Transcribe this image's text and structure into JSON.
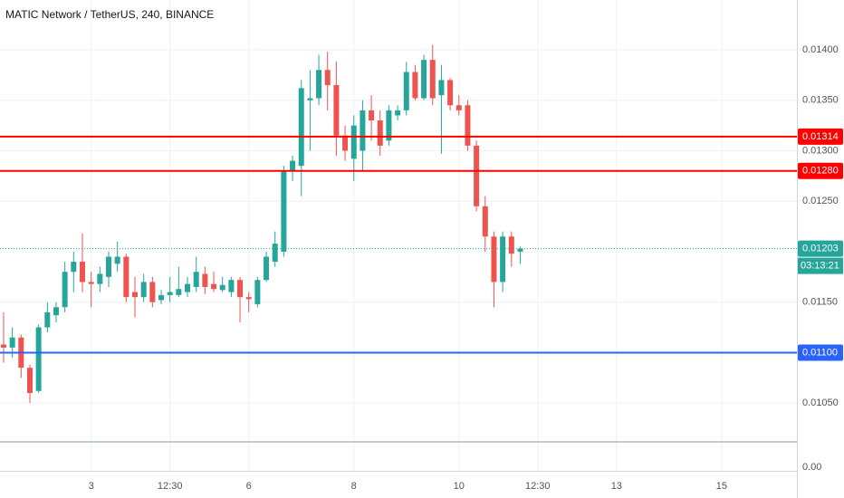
{
  "chart_data": {
    "type": "candlestick",
    "title": "MATIC Network / TetherUS, 240, BINANCE",
    "up_color": "#26a69a",
    "down_color": "#ef5350",
    "x": [
      0,
      1,
      2,
      3,
      4,
      5,
      6,
      7,
      8,
      9,
      10,
      11,
      12,
      13,
      14,
      15,
      16,
      17,
      18,
      19,
      20,
      21,
      22,
      23,
      24,
      25,
      26,
      27,
      28,
      29,
      30,
      31,
      32,
      33,
      34,
      35,
      36,
      37,
      38,
      39,
      40,
      41,
      42,
      43,
      44,
      45,
      46,
      47,
      48,
      49,
      50,
      51,
      52,
      53,
      54,
      55,
      56,
      57,
      58,
      59
    ],
    "open": [
      0.01108,
      0.01105,
      0.01115,
      0.01085,
      0.01062,
      0.01125,
      0.01137,
      0.01145,
      0.0118,
      0.0119,
      0.0117,
      0.01168,
      0.01175,
      0.01188,
      0.01195,
      0.0116,
      0.01155,
      0.0117,
      0.01152,
      0.01157,
      0.01157,
      0.0116,
      0.01165,
      0.01178,
      0.01168,
      0.01162,
      0.0116,
      0.01172,
      0.01155,
      0.01148,
      0.01172,
      0.0119,
      0.012,
      0.0128,
      0.01285,
      0.0135,
      0.01352,
      0.0138,
      0.01365,
      0.01315,
      0.01292,
      0.013,
      0.0134,
      0.0133,
      0.0131,
      0.01335,
      0.0134,
      0.01378,
      0.01352,
      0.0139,
      0.01355,
      0.0137,
      0.01345,
      0.01345,
      0.01305,
      0.01245,
      0.01215,
      0.0117,
      0.01215,
      0.012
    ],
    "high": [
      0.0114,
      0.01125,
      0.01118,
      0.01088,
      0.01128,
      0.0115,
      0.0115,
      0.0119,
      0.012,
      0.01218,
      0.0118,
      0.01185,
      0.012,
      0.0121,
      0.01198,
      0.01175,
      0.01178,
      0.01175,
      0.01162,
      0.01175,
      0.01185,
      0.01175,
      0.01195,
      0.01185,
      0.0118,
      0.01175,
      0.01175,
      0.01175,
      0.0116,
      0.01175,
      0.012,
      0.0122,
      0.01285,
      0.01295,
      0.0137,
      0.0138,
      0.01395,
      0.01398,
      0.01388,
      0.01325,
      0.01335,
      0.0135,
      0.01355,
      0.0134,
      0.01345,
      0.01345,
      0.01388,
      0.01385,
      0.01395,
      0.01405,
      0.01385,
      0.01372,
      0.01355,
      0.0135,
      0.0131,
      0.01255,
      0.0122,
      0.0122,
      0.0122,
      0.01205
    ],
    "low": [
      0.0109,
      0.01095,
      0.01075,
      0.0105,
      0.0106,
      0.0112,
      0.0113,
      0.0114,
      0.0116,
      0.0116,
      0.01145,
      0.0116,
      0.01165,
      0.0118,
      0.0115,
      0.01135,
      0.0115,
      0.01145,
      0.01148,
      0.0115,
      0.01155,
      0.01155,
      0.0116,
      0.01158,
      0.0116,
      0.0116,
      0.01155,
      0.0113,
      0.0114,
      0.01145,
      0.0117,
      0.01185,
      0.01195,
      0.0127,
      0.01255,
      0.013,
      0.01345,
      0.0134,
      0.01295,
      0.0129,
      0.0127,
      0.0128,
      0.0131,
      0.01295,
      0.01305,
      0.0133,
      0.01335,
      0.0135,
      0.0135,
      0.01345,
      0.01297,
      0.0134,
      0.01335,
      0.013,
      0.0124,
      0.012,
      0.01145,
      0.0116,
      0.01185,
      0.01188
    ],
    "close": [
      0.01105,
      0.01115,
      0.01085,
      0.0106,
      0.01125,
      0.0114,
      0.01145,
      0.0118,
      0.0119,
      0.0117,
      0.01168,
      0.01178,
      0.01195,
      0.01195,
      0.01155,
      0.01155,
      0.0117,
      0.0115,
      0.01157,
      0.0116,
      0.01163,
      0.01168,
      0.0118,
      0.01165,
      0.01163,
      0.01167,
      0.01172,
      0.01155,
      0.01153,
      0.01172,
      0.01195,
      0.01208,
      0.0128,
      0.0129,
      0.01362,
      0.01352,
      0.0138,
      0.01365,
      0.01315,
      0.013,
      0.01325,
      0.0134,
      0.0133,
      0.01305,
      0.0134,
      0.0134,
      0.01378,
      0.01352,
      0.0139,
      0.01352,
      0.0137,
      0.01345,
      0.0134,
      0.01305,
      0.01245,
      0.01215,
      0.0117,
      0.01215,
      0.01198,
      0.01203
    ],
    "xlim": [
      -0.41,
      90.6
    ],
    "xticks": [
      {
        "value": 10,
        "label": "3"
      },
      {
        "value": 19,
        "label": "12:30"
      },
      {
        "value": 28,
        "label": "6"
      },
      {
        "value": 40,
        "label": "8"
      },
      {
        "value": 52,
        "label": "10"
      },
      {
        "value": 61,
        "label": "12:30"
      },
      {
        "value": 70,
        "label": "13"
      },
      {
        "value": 82,
        "label": "15"
      }
    ],
    "ylim": [
      0.010116,
      0.014493
    ],
    "yticks": [
      {
        "value": 0.014,
        "label": "0.01400"
      },
      {
        "value": 0.0135,
        "label": "0.01350"
      },
      {
        "value": 0.013,
        "label": "0.01300"
      },
      {
        "value": 0.0125,
        "label": "0.01250"
      },
      {
        "value": 0.0115,
        "label": "0.01150"
      },
      {
        "value": 0.0105,
        "label": "0.01050"
      }
    ],
    "grid": true,
    "levels": [
      {
        "value": 0.01314,
        "color": "#ff0000"
      },
      {
        "value": 0.0128,
        "label": "0.01280",
        "color": "#ff0000"
      },
      {
        "value": 0.011,
        "label": "0.01100",
        "color": "#2962ff"
      }
    ],
    "last_price": {
      "value": 0.01203,
      "color": "#26a69a",
      "countdown": "03:13:21"
    },
    "lower_pane": {
      "yticks": [
        {
          "value": 0,
          "label": "0.00"
        }
      ]
    }
  }
}
